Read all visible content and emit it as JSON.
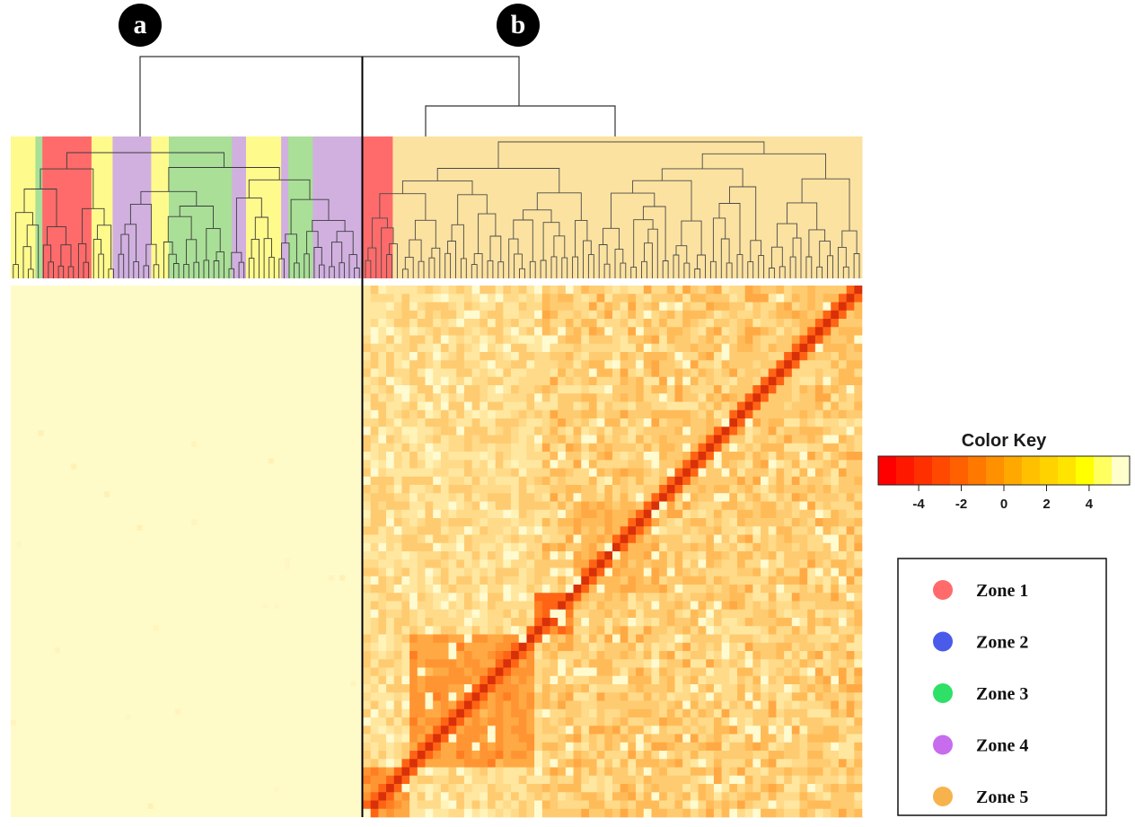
{
  "panels": [
    {
      "letter": "a"
    },
    {
      "letter": "b"
    }
  ],
  "chart_data": {
    "type": "heatmap",
    "title": "",
    "description_free": true,
    "matrix_size": 64,
    "panel_a_fill_color": "#FFFBC8",
    "clusters_b": [
      {
        "start": 0,
        "end": 6,
        "intensity": 0.78
      },
      {
        "start": 6,
        "end": 22,
        "intensity": 0.7
      },
      {
        "start": 22,
        "end": 27,
        "intensity": 0.88
      },
      {
        "start": 27,
        "end": 38,
        "intensity": 0.55
      },
      {
        "start": 38,
        "end": 48,
        "intensity": 0.45
      },
      {
        "start": 48,
        "end": 56,
        "intensity": 0.4
      },
      {
        "start": 56,
        "end": 64,
        "intensity": 0.5
      }
    ],
    "top_color_bar_a": [
      {
        "zone": "Zone 2",
        "color": "#FFFA8C",
        "width": 0.07
      },
      {
        "zone": "Zone 3",
        "color": "#A9DF97",
        "width": 0.02
      },
      {
        "zone": "Zone 1",
        "color": "#FF6B6B",
        "width": 0.14
      },
      {
        "zone": "Zone 2",
        "color": "#FFFA8C",
        "width": 0.06
      },
      {
        "zone": "Zone 4",
        "color": "#D1B0E0",
        "width": 0.11
      },
      {
        "zone": "Zone 2",
        "color": "#FFFA8C",
        "width": 0.05
      },
      {
        "zone": "Zone 3",
        "color": "#A9DF97",
        "width": 0.18
      },
      {
        "zone": "Zone 4",
        "color": "#D1B0E0",
        "width": 0.04
      },
      {
        "zone": "Zone 2",
        "color": "#FFFA8C",
        "width": 0.1
      },
      {
        "zone": "Zone 4",
        "color": "#D1B0E0",
        "width": 0.02
      },
      {
        "zone": "Zone 3",
        "color": "#A9DF97",
        "width": 0.07
      },
      {
        "zone": "Zone 4",
        "color": "#D1B0E0",
        "width": 0.14
      }
    ],
    "top_color_bar_b": [
      {
        "zone": "Zone 1",
        "color": "#FF6B6B",
        "width": 0.06
      },
      {
        "zone": "Zone 5",
        "color": "#FCE2A0",
        "width": 0.94
      }
    ]
  },
  "color_key": {
    "title": "Color Key",
    "ticks": [
      "-4",
      "-2",
      "0",
      "2",
      "4"
    ],
    "tick_values": [
      -4,
      -2,
      0,
      2,
      4
    ],
    "range": [
      -5.9,
      5.9
    ],
    "colors": [
      "#FF0000",
      "#FF1800",
      "#FF3000",
      "#FF4800",
      "#FF6000",
      "#FF7800",
      "#FF9000",
      "#FFA800",
      "#FFC000",
      "#FFD200",
      "#FFE400",
      "#FFFF00",
      "#FFFF60",
      "#FFFFCC"
    ]
  },
  "legend": {
    "items": [
      {
        "label": "Zone 1",
        "color": "#FF6B6B"
      },
      {
        "label": "Zone 2",
        "color": "#4A5BEA"
      },
      {
        "label": "Zone 3",
        "color": "#2EE066"
      },
      {
        "label": "Zone 4",
        "color": "#C86CEE"
      },
      {
        "label": "Zone 5",
        "color": "#F8B24B"
      }
    ]
  }
}
